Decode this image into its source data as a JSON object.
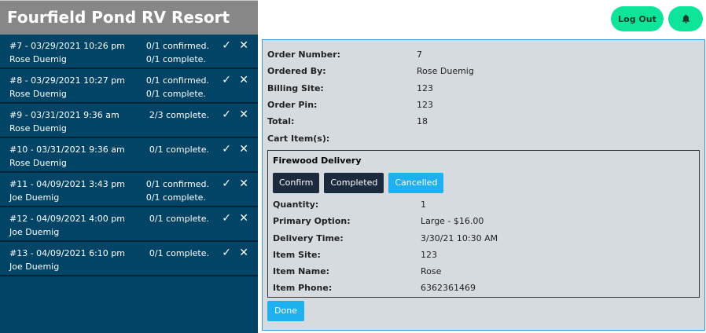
{
  "app_title": "Fourfield Pond RV Resort",
  "orders": [
    {
      "title": "#7 - 03/29/2021 10:26 pm",
      "name": "Rose Duemig",
      "status": [
        "0/1 confirmed.",
        "0/1 complete."
      ]
    },
    {
      "title": "#8 - 03/29/2021 10:27 pm",
      "name": "Rose Duemig",
      "status": [
        "0/1 confirmed.",
        "0/1 complete."
      ]
    },
    {
      "title": "#9 - 03/31/2021 9:36 am",
      "name": "Rose Duemig",
      "status": [
        "2/3 complete."
      ]
    },
    {
      "title": "#10 - 03/31/2021 9:36 am",
      "name": "Rose Duemig",
      "status": [
        "0/1 complete."
      ]
    },
    {
      "title": "#11 - 04/09/2021 3:43 pm",
      "name": "Joe Duemig",
      "status": [
        "0/1 confirmed.",
        "0/1 complete."
      ]
    },
    {
      "title": "#12 - 04/09/2021 4:00 pm",
      "name": "Joe Duemig",
      "status": [
        "0/1 complete."
      ]
    },
    {
      "title": "#13 - 04/09/2021 6:10 pm",
      "name": "Joe Duemig",
      "status": [
        "0/1 complete."
      ]
    }
  ],
  "header": {
    "logout": "Log Out",
    "bell_icon": "bell-icon"
  },
  "details": [
    {
      "k": "Order Number:",
      "v": "7"
    },
    {
      "k": "Ordered By:",
      "v": "Rose Duemig"
    },
    {
      "k": "Billing Site:",
      "v": "123"
    },
    {
      "k": "Order Pin:",
      "v": "123"
    },
    {
      "k": "Total:",
      "v": "18"
    },
    {
      "k": "Cart Item(s):",
      "v": ""
    }
  ],
  "item": {
    "title": "Firewood Delivery",
    "buttons": [
      "Confirm",
      "Completed",
      "Cancelled"
    ],
    "fields": [
      {
        "k": "Quantity:",
        "v": "1"
      },
      {
        "k": "Primary Option:",
        "v": "Large - $16.00"
      },
      {
        "k": "Delivery Time:",
        "v": "3/30/21 10:30 AM"
      },
      {
        "k": "Item Site:",
        "v": "123"
      },
      {
        "k": "Item Name:",
        "v": "Rose"
      },
      {
        "k": "Item Phone:",
        "v": "6362361469"
      }
    ]
  },
  "done": "Done",
  "colors": {
    "sidebar": "#024466",
    "accent": "#0ee59b",
    "blue": "#1fb0f0",
    "dark": "#1b2b3d"
  }
}
